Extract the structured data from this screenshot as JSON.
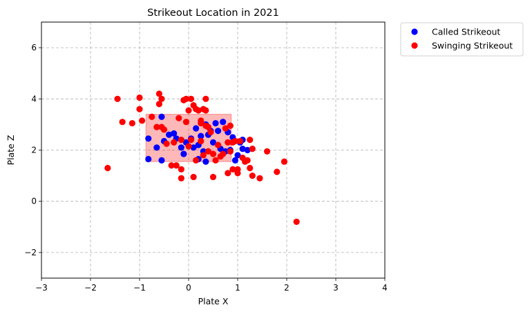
{
  "chart_data": {
    "type": "scatter",
    "title": "Strikeout Location in 2021",
    "xlabel": "Plate X",
    "ylabel": "Plate Z",
    "xlim": [
      -3,
      4
    ],
    "ylim": [
      -3,
      7
    ],
    "xticks": [
      -3,
      -2,
      -1,
      0,
      1,
      2,
      3,
      4
    ],
    "yticks": [
      -2,
      0,
      2,
      4,
      6
    ],
    "grid": true,
    "legend_position": "outside-top-right",
    "strike_zone": {
      "x": [
        -0.87,
        0.87
      ],
      "z": [
        1.55,
        3.4
      ],
      "color": "#ff0000"
    },
    "series": [
      {
        "name": "Called Strikeout",
        "color": "#0000ff",
        "points": [
          [
            -0.82,
            2.45
          ],
          [
            -0.82,
            1.65
          ],
          [
            -0.65,
            2.1
          ],
          [
            -0.55,
            3.3
          ],
          [
            -0.55,
            1.6
          ],
          [
            -0.5,
            2.35
          ],
          [
            -0.4,
            2.6
          ],
          [
            -0.3,
            2.65
          ],
          [
            -0.25,
            2.45
          ],
          [
            -0.15,
            2.1
          ],
          [
            -0.05,
            2.3
          ],
          [
            0.05,
            2.45
          ],
          [
            0.1,
            2.1
          ],
          [
            0.15,
            2.85
          ],
          [
            0.2,
            2.2
          ],
          [
            0.25,
            2.55
          ],
          [
            0.3,
            1.95
          ],
          [
            0.35,
            3.0
          ],
          [
            0.4,
            2.6
          ],
          [
            0.45,
            2.75
          ],
          [
            0.5,
            2.3
          ],
          [
            0.55,
            3.05
          ],
          [
            0.6,
            2.75
          ],
          [
            0.65,
            2.05
          ],
          [
            0.7,
            3.1
          ],
          [
            0.75,
            1.95
          ],
          [
            0.8,
            2.7
          ],
          [
            0.85,
            2.0
          ],
          [
            0.9,
            2.5
          ],
          [
            0.95,
            1.6
          ],
          [
            1.0,
            1.8
          ],
          [
            1.05,
            2.3
          ],
          [
            1.1,
            2.05
          ],
          [
            1.1,
            2.4
          ],
          [
            1.2,
            2.0
          ],
          [
            0.35,
            1.55
          ],
          [
            0.2,
            1.65
          ],
          [
            -0.1,
            1.85
          ]
        ]
      },
      {
        "name": "Swinging Strikeout",
        "color": "#ff0000",
        "points": [
          [
            -1.45,
            4.0
          ],
          [
            -1.35,
            3.1
          ],
          [
            -1.15,
            3.05
          ],
          [
            -1.0,
            3.6
          ],
          [
            -1.0,
            4.05
          ],
          [
            -0.95,
            3.15
          ],
          [
            -0.75,
            3.3
          ],
          [
            -0.65,
            2.9
          ],
          [
            -0.6,
            4.2
          ],
          [
            -0.6,
            3.8
          ],
          [
            -0.55,
            4.0
          ],
          [
            -0.5,
            2.8
          ],
          [
            -0.55,
            2.9
          ],
          [
            -0.45,
            2.25
          ],
          [
            -0.35,
            1.4
          ],
          [
            -0.25,
            1.4
          ],
          [
            -0.2,
            3.25
          ],
          [
            -0.15,
            2.4
          ],
          [
            -0.1,
            3.95
          ],
          [
            -0.05,
            4.0
          ],
          [
            0.0,
            3.55
          ],
          [
            0.05,
            4.0
          ],
          [
            0.1,
            3.75
          ],
          [
            0.15,
            3.6
          ],
          [
            0.2,
            3.55
          ],
          [
            0.25,
            3.15
          ],
          [
            0.3,
            3.6
          ],
          [
            0.35,
            3.55
          ],
          [
            0.35,
            4.0
          ],
          [
            0.4,
            2.9
          ],
          [
            0.45,
            2.7
          ],
          [
            0.5,
            1.85
          ],
          [
            0.55,
            1.6
          ],
          [
            0.6,
            2.2
          ],
          [
            0.65,
            1.75
          ],
          [
            0.7,
            1.85
          ],
          [
            0.75,
            2.85
          ],
          [
            0.8,
            2.3
          ],
          [
            0.85,
            2.95
          ],
          [
            0.85,
            1.95
          ],
          [
            0.9,
            2.3
          ],
          [
            0.95,
            2.35
          ],
          [
            1.0,
            1.1
          ],
          [
            1.0,
            1.25
          ],
          [
            1.05,
            2.35
          ],
          [
            1.1,
            1.7
          ],
          [
            1.15,
            1.55
          ],
          [
            1.2,
            1.6
          ],
          [
            1.25,
            1.3
          ],
          [
            1.3,
            2.05
          ],
          [
            1.3,
            1.0
          ],
          [
            1.45,
            0.9
          ],
          [
            1.6,
            1.95
          ],
          [
            1.8,
            1.15
          ],
          [
            1.95,
            1.55
          ],
          [
            2.2,
            -0.8
          ],
          [
            -1.65,
            1.3
          ],
          [
            -0.15,
            0.9
          ],
          [
            0.1,
            0.95
          ],
          [
            0.5,
            0.95
          ],
          [
            0.8,
            1.1
          ],
          [
            -0.15,
            1.25
          ],
          [
            0.0,
            2.15
          ],
          [
            0.05,
            2.4
          ],
          [
            0.25,
            2.35
          ],
          [
            0.3,
            1.8
          ],
          [
            0.4,
            1.95
          ],
          [
            -0.3,
            2.3
          ],
          [
            0.15,
            1.6
          ],
          [
            -0.05,
            3.1
          ],
          [
            0.9,
            1.25
          ],
          [
            1.25,
            2.4
          ],
          [
            0.35,
            2.95
          ],
          [
            0.25,
            3.05
          ]
        ]
      }
    ]
  }
}
